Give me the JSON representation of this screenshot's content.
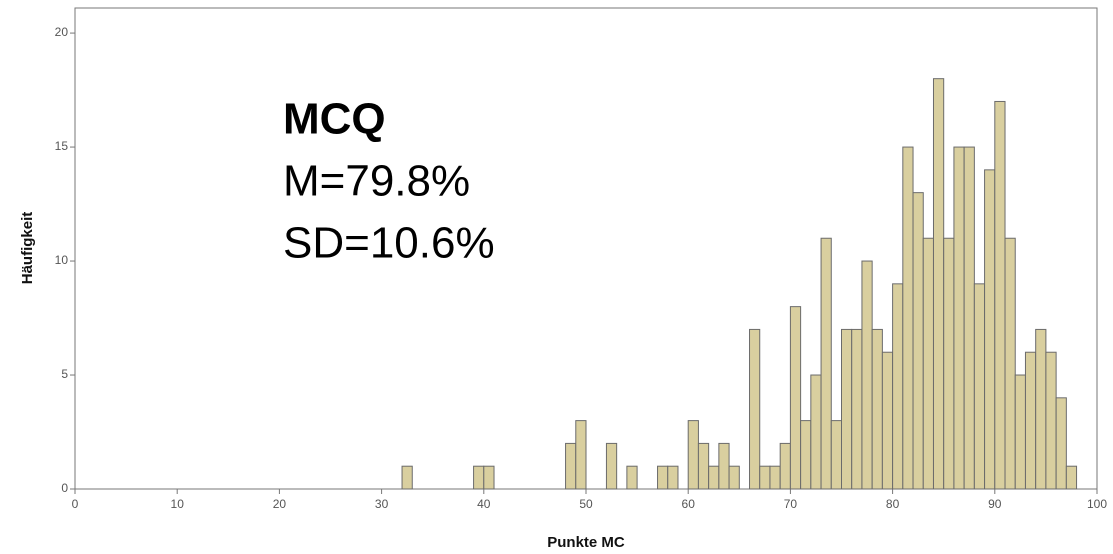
{
  "chart_data": {
    "type": "histogram",
    "xlabel": "Punkte MC",
    "ylabel": "Häufigkeit",
    "annotations": [
      "MCQ",
      "M=79.8%",
      "SD=10.6%"
    ],
    "bins": [
      32,
      33,
      34,
      35,
      36,
      37,
      38,
      39,
      40,
      41,
      42,
      43,
      44,
      45,
      46,
      47,
      48,
      49,
      50,
      51,
      52,
      53,
      54,
      55,
      56,
      57,
      58,
      59,
      60,
      61,
      62,
      63,
      64,
      65,
      66,
      67,
      68,
      69,
      70,
      71,
      72,
      73,
      74,
      75,
      76,
      77,
      78,
      79,
      80,
      81,
      82,
      83,
      84,
      85,
      86,
      87,
      88,
      89,
      90,
      91,
      92,
      93,
      94,
      95,
      96,
      97,
      98
    ],
    "values": [
      1,
      0,
      0,
      0,
      0,
      0,
      0,
      1,
      1,
      0,
      0,
      0,
      0,
      0,
      0,
      0,
      2,
      3,
      0,
      0,
      2,
      0,
      1,
      0,
      0,
      1,
      1,
      0,
      3,
      2,
      1,
      2,
      1,
      0,
      7,
      1,
      1,
      2,
      8,
      3,
      5,
      11,
      3,
      7,
      7,
      10,
      7,
      6,
      9,
      15,
      13,
      11,
      18,
      11,
      15,
      15,
      9,
      14,
      17,
      11,
      5,
      6,
      7,
      6,
      4,
      1
    ],
    "color": "#d9cf9f",
    "xlim": [
      0,
      100
    ],
    "xticks": [
      0,
      10,
      20,
      30,
      40,
      50,
      60,
      70,
      80,
      90,
      100
    ],
    "ylim": [
      0,
      21.1
    ],
    "yticks": [
      0,
      5,
      10,
      15,
      20
    ]
  }
}
